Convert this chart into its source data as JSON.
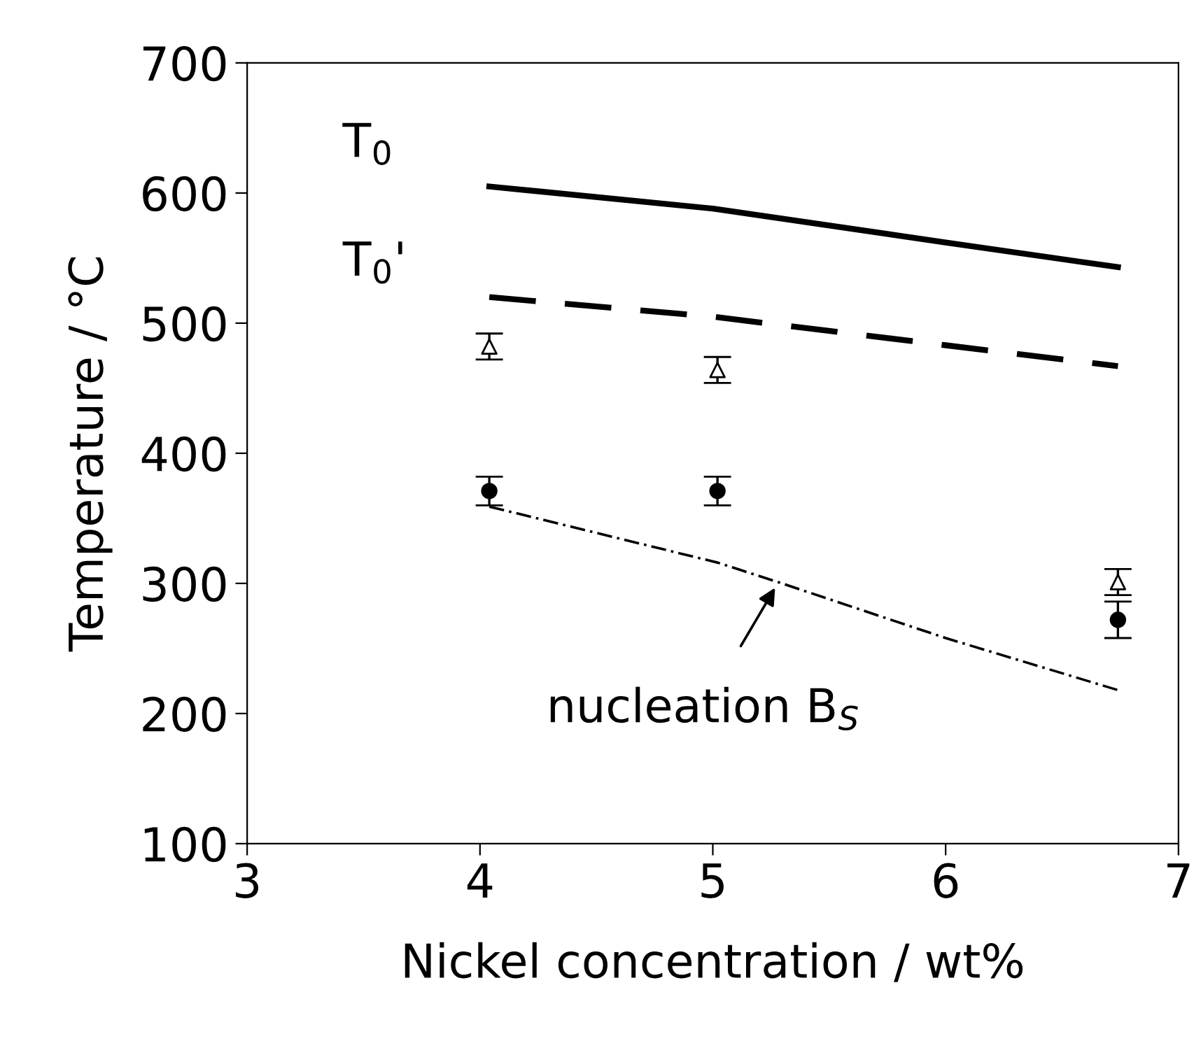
{
  "chart_data": {
    "type": "line",
    "xlabel": "Nickel concentration / wt%",
    "ylabel": "Temperature / °C",
    "xlim": [
      3,
      7
    ],
    "xticks": [
      3,
      4,
      5,
      6,
      7
    ],
    "ylim": [
      100,
      700
    ],
    "yticks": [
      100,
      200,
      300,
      400,
      500,
      600,
      700
    ],
    "grid": false,
    "legend": false,
    "series": [
      {
        "color": "#000000",
        "line_style": "solid",
        "x": [
          4.04,
          5.0,
          6.0,
          6.74
        ],
        "values": [
          605,
          588,
          562,
          543
        ]
      },
      {
        "color": "#000000",
        "line_style": "dashed",
        "x": [
          4.04,
          5.0,
          6.0,
          6.74
        ],
        "values": [
          520,
          505,
          483,
          467
        ]
      },
      {
        "color": "#000000",
        "line_style": "dashdot",
        "x": [
          4.04,
          5.02,
          5.28,
          6.0,
          6.74
        ],
        "values": [
          359,
          316,
          301,
          258,
          218
        ]
      },
      {
        "type": "scatter",
        "color": "#000000",
        "marker": "triangle",
        "x": [
          4.04,
          5.02,
          6.74
        ],
        "values": [
          482,
          464,
          301
        ],
        "errors": [
          10,
          10,
          10
        ]
      },
      {
        "type": "scatter",
        "color": "#000000",
        "marker": "circle",
        "x": [
          4.04,
          5.02,
          6.74
        ],
        "values": [
          371,
          371,
          272
        ],
        "errors": [
          11,
          11,
          14
        ]
      }
    ],
    "annotations": [
      "T$_{0}$",
      "T$_{0}$'",
      "nucleation B$_{S}$"
    ]
  }
}
